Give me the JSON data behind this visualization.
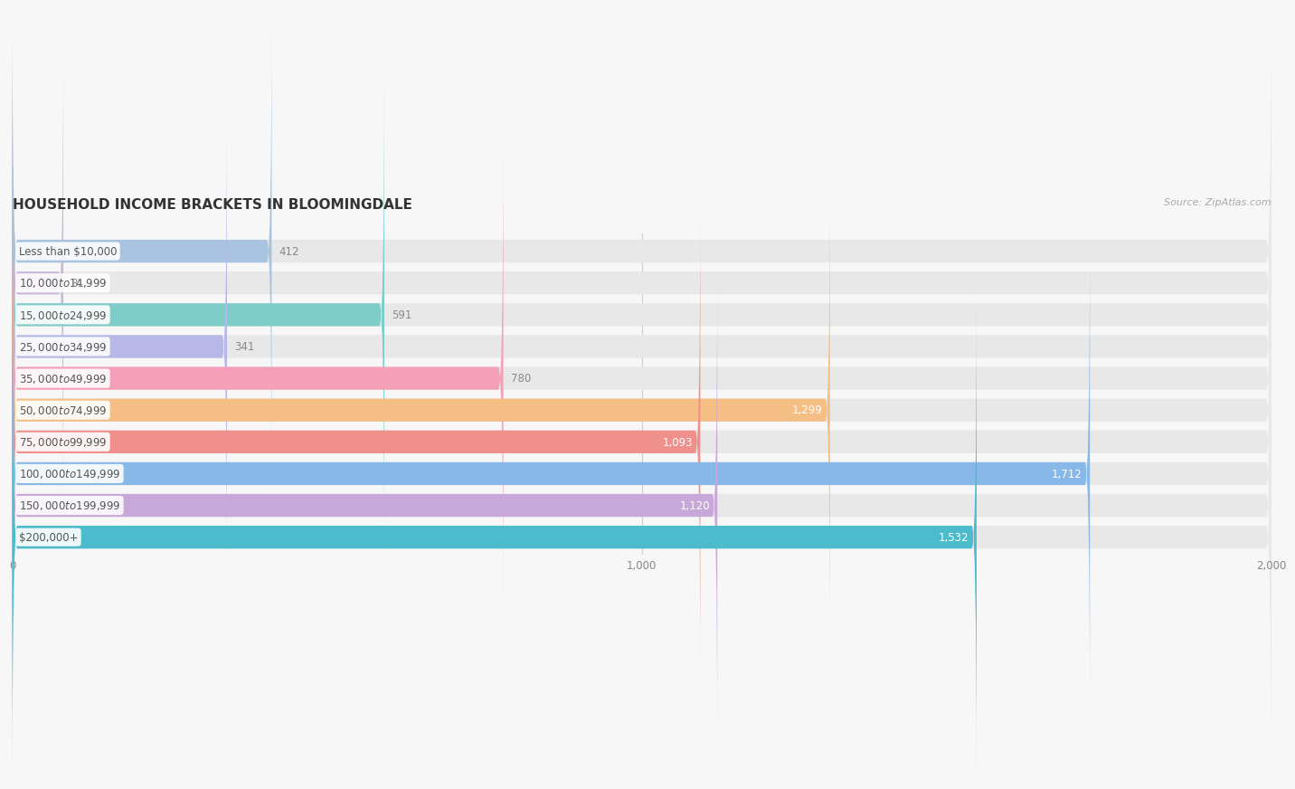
{
  "title": "HOUSEHOLD INCOME BRACKETS IN BLOOMINGDALE",
  "source": "Source: ZipAtlas.com",
  "categories": [
    "Less than $10,000",
    "$10,000 to $14,999",
    "$15,000 to $24,999",
    "$25,000 to $34,999",
    "$35,000 to $49,999",
    "$50,000 to $74,999",
    "$75,000 to $99,999",
    "$100,000 to $149,999",
    "$150,000 to $199,999",
    "$200,000+"
  ],
  "values": [
    412,
    81,
    591,
    341,
    780,
    1299,
    1093,
    1712,
    1120,
    1532
  ],
  "bar_colors": [
    "#a8c4e0",
    "#c9b8d8",
    "#7ecdc8",
    "#b8b8e8",
    "#f4a0b8",
    "#f5be84",
    "#f0908c",
    "#88b8e8",
    "#c8a8d8",
    "#4cbccc"
  ],
  "value_inside_color": "#ffffff",
  "value_outside_color": "#888888",
  "value_inside_threshold": 900,
  "xlim": [
    0,
    2000
  ],
  "xticks": [
    0,
    1000,
    2000
  ],
  "background_color": "#f7f7f7",
  "bar_background_color": "#e8e8e8",
  "title_fontsize": 11,
  "label_fontsize": 8.5,
  "value_fontsize": 8.5,
  "source_fontsize": 8,
  "bar_height": 0.72,
  "bar_rounding": 8
}
